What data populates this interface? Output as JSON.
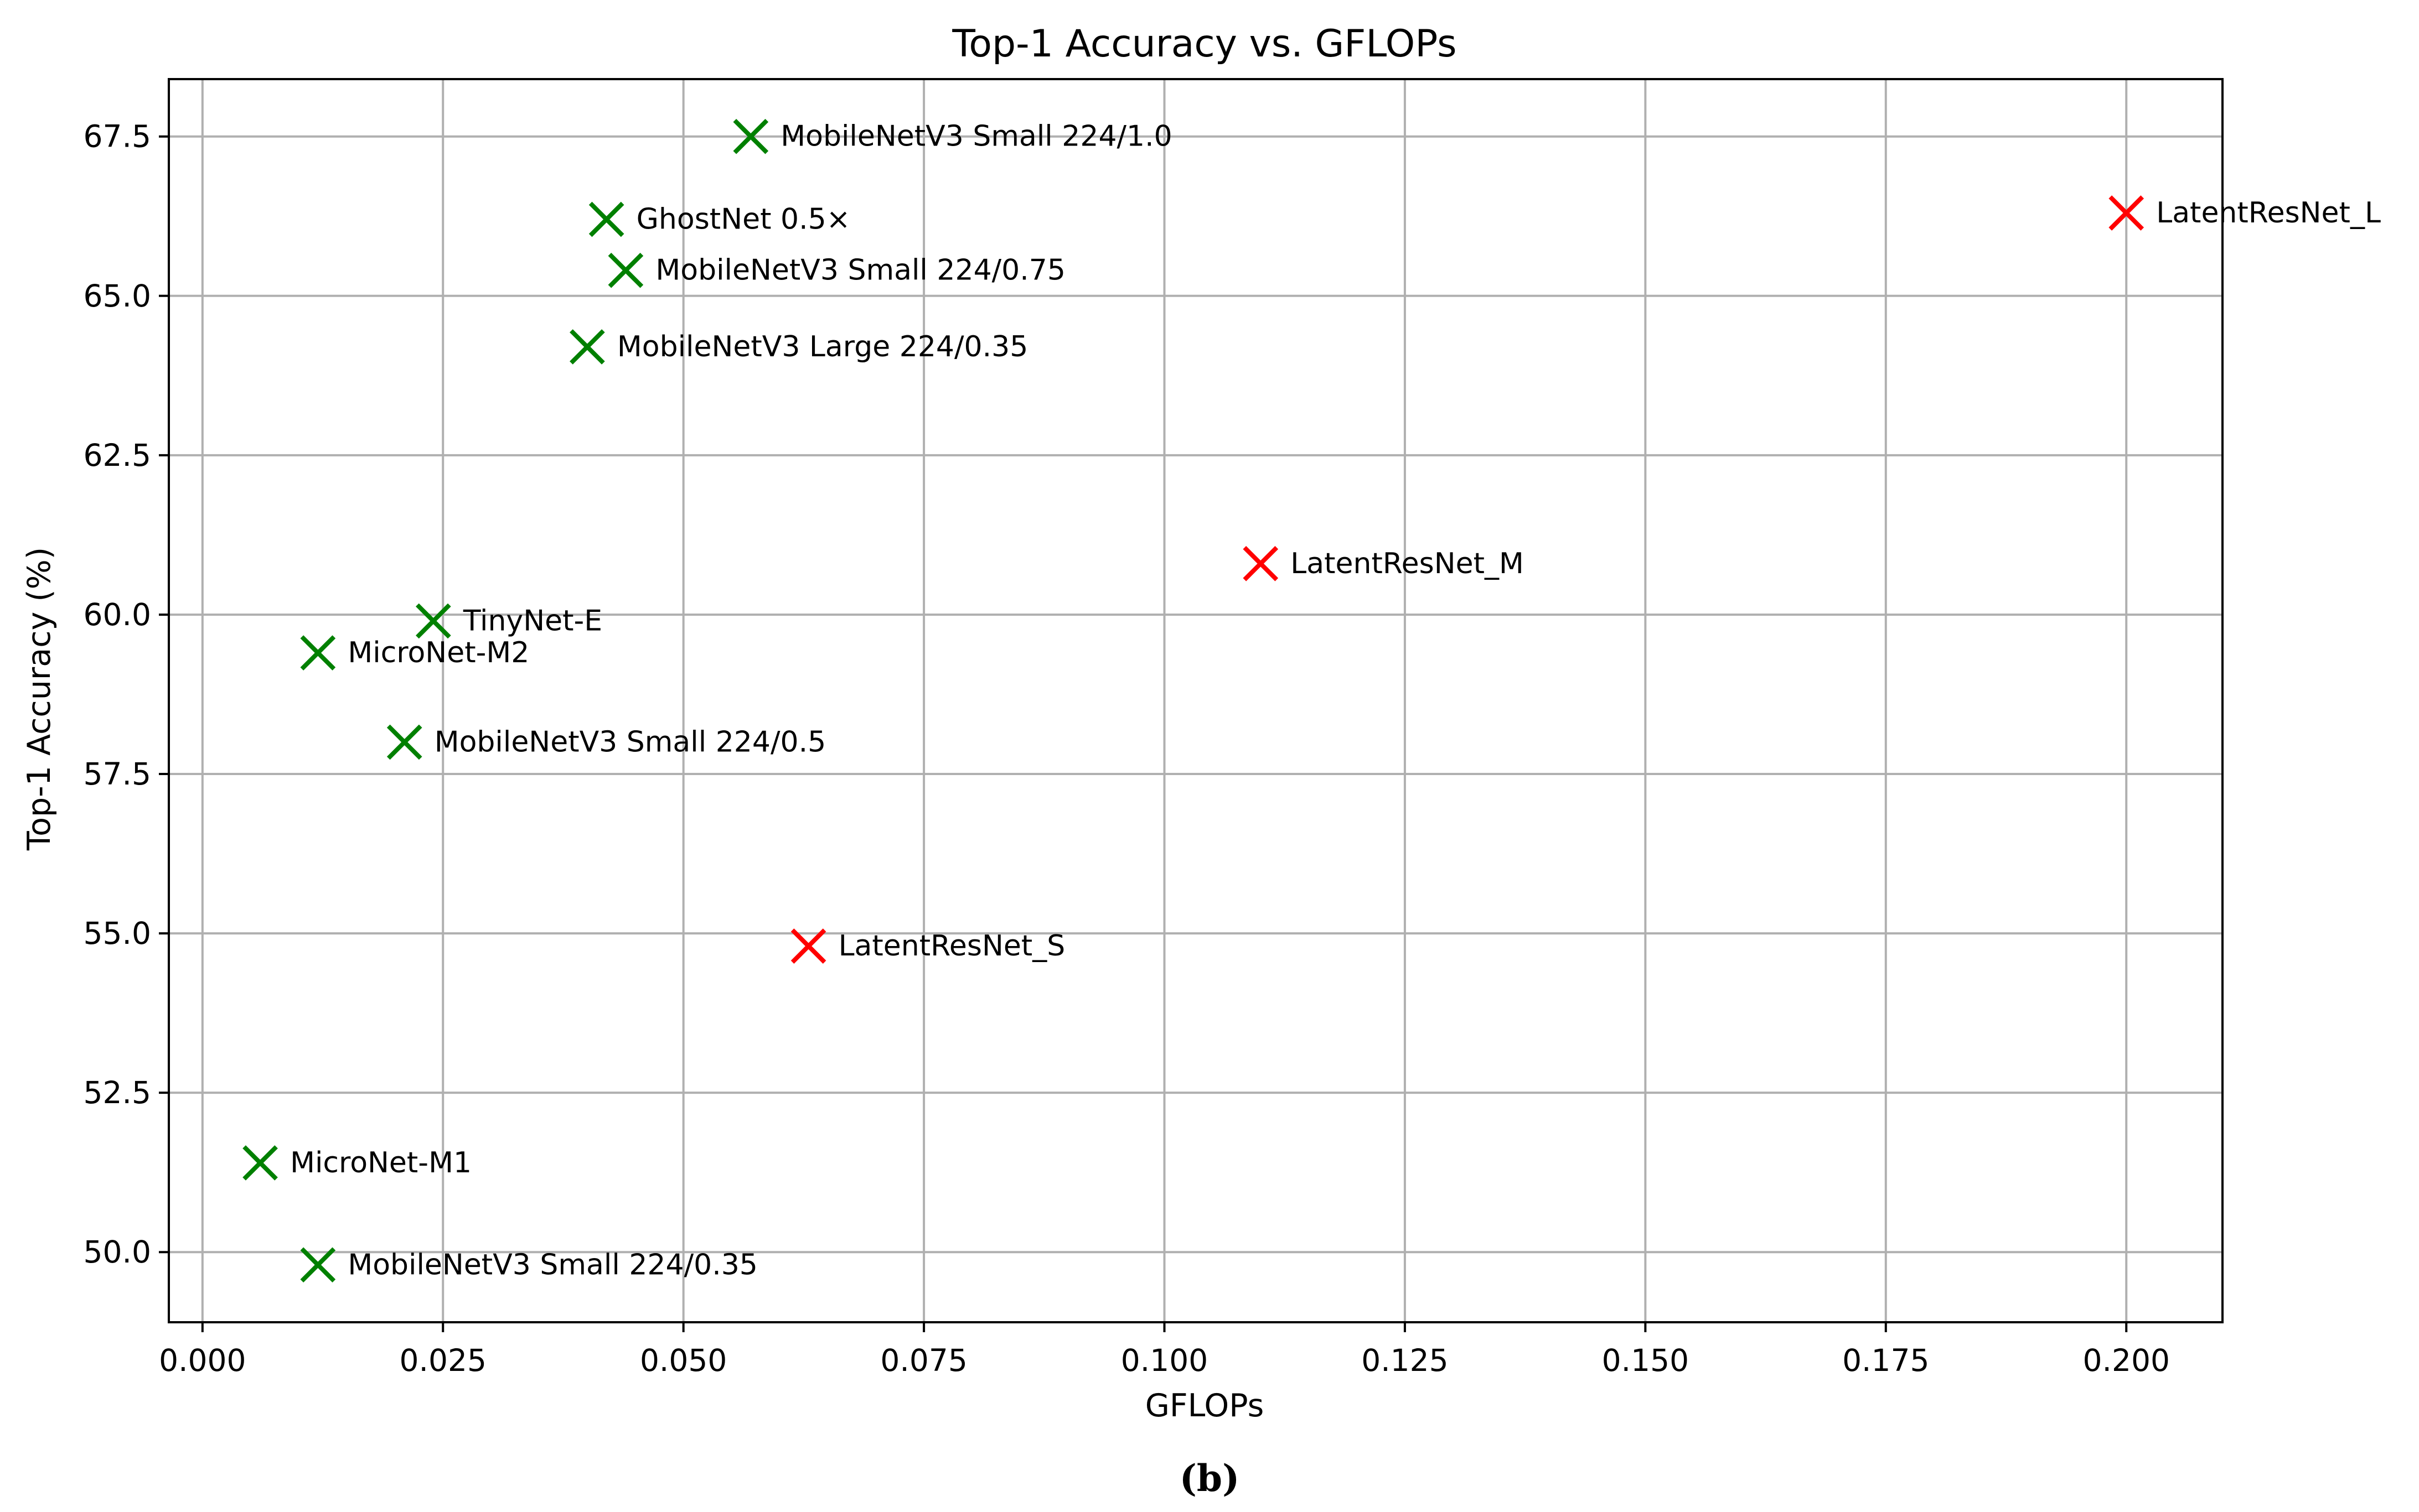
{
  "chart_data": {
    "type": "scatter",
    "title": "Top-1 Accuracy vs. GFLOPs",
    "xlabel": "GFLOPs",
    "ylabel": "Top-1 Accuracy (%)",
    "xlim": [
      -0.0035,
      0.21
    ],
    "ylim": [
      48.9,
      68.4
    ],
    "xticks": [
      0.0,
      0.025,
      0.05,
      0.075,
      0.1,
      0.125,
      0.15,
      0.175,
      0.2
    ],
    "xtick_labels": [
      "0.000",
      "0.025",
      "0.050",
      "0.075",
      "0.100",
      "0.125",
      "0.150",
      "0.175",
      "0.200"
    ],
    "yticks": [
      50.0,
      52.5,
      55.0,
      57.5,
      60.0,
      62.5,
      65.0,
      67.5
    ],
    "ytick_labels": [
      "50.0",
      "52.5",
      "55.0",
      "57.5",
      "60.0",
      "62.5",
      "65.0",
      "67.5"
    ],
    "grid": true,
    "marker": "x",
    "colors": {
      "baseline": "#008000",
      "proposed": "#ff0000"
    },
    "points": [
      {
        "label": "MobileNetV3 Small 224/1.0",
        "x": 0.057,
        "y": 67.5,
        "group": "baseline"
      },
      {
        "label": "GhostNet 0.5×",
        "x": 0.042,
        "y": 66.2,
        "group": "baseline"
      },
      {
        "label": "MobileNetV3 Small 224/0.75",
        "x": 0.044,
        "y": 65.4,
        "group": "baseline"
      },
      {
        "label": "MobileNetV3 Large 224/0.35",
        "x": 0.04,
        "y": 64.2,
        "group": "baseline"
      },
      {
        "label": "TinyNet-E",
        "x": 0.024,
        "y": 59.9,
        "group": "baseline"
      },
      {
        "label": "MicroNet-M2",
        "x": 0.012,
        "y": 59.4,
        "group": "baseline"
      },
      {
        "label": "MobileNetV3 Small 224/0.5",
        "x": 0.021,
        "y": 58.0,
        "group": "baseline"
      },
      {
        "label": "MicroNet-M1",
        "x": 0.006,
        "y": 51.4,
        "group": "baseline"
      },
      {
        "label": "MobileNetV3 Small 224/0.35",
        "x": 0.012,
        "y": 49.8,
        "group": "baseline"
      },
      {
        "label": "LatentResNet_L",
        "x": 0.2,
        "y": 66.3,
        "group": "proposed"
      },
      {
        "label": "LatentResNet_M",
        "x": 0.11,
        "y": 60.8,
        "group": "proposed"
      },
      {
        "label": "LatentResNet_S",
        "x": 0.063,
        "y": 54.8,
        "group": "proposed"
      }
    ]
  },
  "caption": "(b)"
}
